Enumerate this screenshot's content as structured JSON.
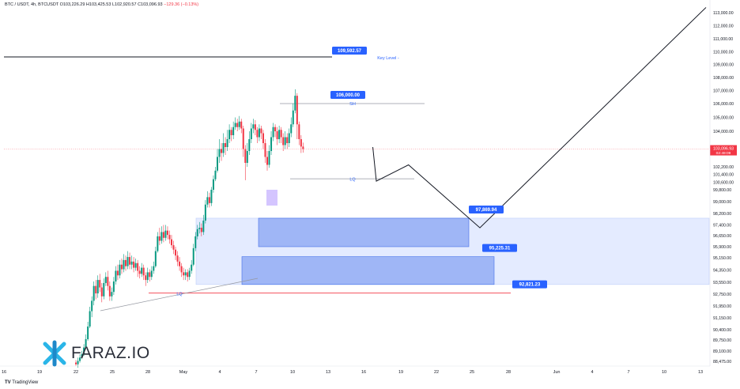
{
  "header": {
    "symbol": "BTC / USDT, 4h, BTCUSDT",
    "ohlc": "O103,226.29  H103,425.53  L102,920.57  C103,096.93",
    "change": "−129.36 (−0.13%)"
  },
  "branding": {
    "tradingview": "TradingView",
    "watermark": "FARAZ.IO"
  },
  "chart_data": {
    "type": "candlestick",
    "symbol": "BTC / USDT",
    "timeframe": "4h",
    "y_ticks": [
      113000,
      112000,
      111000,
      110000,
      109000,
      108000,
      107000,
      106000,
      105000,
      104000,
      103096.93,
      102200,
      101400,
      100600,
      99800,
      99000,
      98200,
      97400,
      96650,
      95900,
      95150,
      94350,
      93550,
      92750,
      91950,
      91150,
      90400,
      89750,
      89100,
      88475
    ],
    "y_tick_labels": [
      "113,000.00",
      "112,000.00",
      "111,000.00",
      "110,000.00",
      "109,000.00",
      "108,000.00",
      "107,000.00",
      "106,000.00",
      "105,000.00",
      "104,000.00",
      "",
      "102,200.00",
      "101,400.00",
      "100,600.00",
      "99,800.00",
      "99,000.00",
      "98,200.00",
      "97,400.00",
      "96,650.00",
      "95,900.00",
      "95,150.00",
      "94,350.00",
      "93,550.00",
      "92,750.00",
      "91,950.00",
      "91,150.00",
      "90,400.00",
      "89,750.00",
      "89,100.00",
      "88,475.00"
    ],
    "x_ticks": [
      "16",
      "19",
      "22",
      "25",
      "28",
      "May",
      "4",
      "7",
      "10",
      "13",
      "16",
      "19",
      "22",
      "25",
      "28",
      "Jun",
      "4",
      "7",
      "10",
      "13"
    ],
    "current_price": {
      "value": 103096.93,
      "label": "103,096.93",
      "countdown": "02:49:09",
      "color": "#f23645"
    },
    "levels": [
      {
        "name": "key_level",
        "value": 109592.57,
        "label": "109,592.57",
        "caption": "Key Level -"
      },
      {
        "name": "sh",
        "value": 106000.0,
        "label": "106,000.00",
        "caption": "SH"
      },
      {
        "name": "lq_upper",
        "value": 100950,
        "caption": "LQ"
      },
      {
        "name": "lq_lower",
        "value": 92821.23,
        "label": "92,821.23",
        "caption": "LQ"
      }
    ],
    "zones": [
      {
        "name": "zone_1",
        "top": 97869.94,
        "bottom": 95900,
        "label": "97,869.94",
        "start": "May 7",
        "end": "May 25"
      },
      {
        "name": "zone_2",
        "top": 95225.31,
        "bottom": 93400,
        "label": "95,225.31",
        "start": "May 5",
        "end": "May 26"
      },
      {
        "name": "zone_wide",
        "top": 97869.94,
        "bottom": 93400,
        "start": "May 1",
        "end": "Jun 13"
      }
    ],
    "projection": [
      {
        "date": "May 16",
        "value": 103200
      },
      {
        "date": "May 17.5",
        "value": 100700
      },
      {
        "date": "May 19",
        "value": 102300
      },
      {
        "date": "May 25",
        "value": 97200
      },
      {
        "date": "Jun 13",
        "value": 113400
      }
    ],
    "candles": [
      [
        88400,
        88300,
        88550,
        88200
      ],
      [
        88300,
        88500,
        88700,
        88100
      ],
      [
        88500,
        88700,
        88900,
        88400
      ],
      [
        88700,
        88900,
        89100,
        88600
      ],
      [
        88900,
        89300,
        89500,
        88800
      ],
      [
        89300,
        89800,
        90100,
        89200
      ],
      [
        89800,
        90600,
        90900,
        89700
      ],
      [
        90600,
        91600,
        91900,
        90500
      ],
      [
        91600,
        92300,
        92600,
        91200
      ],
      [
        92300,
        93300,
        93600,
        92000
      ],
      [
        93300,
        92800,
        93700,
        92400
      ],
      [
        92800,
        93700,
        94000,
        92500
      ],
      [
        93700,
        93200,
        94100,
        92900
      ],
      [
        93200,
        92600,
        93500,
        92200
      ],
      [
        92600,
        93500,
        93800,
        92400
      ],
      [
        93500,
        93900,
        94200,
        93300
      ],
      [
        93900,
        93300,
        94300,
        93000
      ],
      [
        93300,
        92600,
        93600,
        92300
      ],
      [
        92600,
        92900,
        93200,
        92300
      ],
      [
        92900,
        93600,
        93900,
        92700
      ],
      [
        93600,
        94300,
        94600,
        93400
      ],
      [
        94300,
        94000,
        94700,
        93700
      ],
      [
        94000,
        94700,
        95000,
        93800
      ],
      [
        94700,
        94400,
        95100,
        94100
      ],
      [
        94400,
        95000,
        95400,
        94200
      ],
      [
        95000,
        94600,
        95300,
        94300
      ],
      [
        94600,
        95200,
        95600,
        94400
      ],
      [
        95200,
        94700,
        95500,
        94400
      ],
      [
        94700,
        94900,
        95300,
        94400
      ],
      [
        94900,
        94500,
        95200,
        94200
      ],
      [
        94500,
        94800,
        95100,
        94300
      ],
      [
        94800,
        94300,
        95000,
        93900
      ],
      [
        94300,
        94100,
        94600,
        93800
      ],
      [
        94100,
        94500,
        94800,
        93900
      ],
      [
        94500,
        94000,
        94700,
        93700
      ],
      [
        94000,
        93700,
        94200,
        93300
      ],
      [
        93700,
        94200,
        94500,
        93500
      ],
      [
        94200,
        93900,
        94400,
        93600
      ],
      [
        93900,
        94300,
        94600,
        93700
      ],
      [
        94300,
        94600,
        94900,
        94100
      ],
      [
        94600,
        95600,
        95900,
        94500
      ],
      [
        95600,
        96600,
        96900,
        95500
      ],
      [
        96600,
        96300,
        97200,
        96000
      ],
      [
        96300,
        96900,
        97300,
        96100
      ],
      [
        96900,
        96500,
        97400,
        96200
      ],
      [
        96500,
        97000,
        97400,
        96300
      ],
      [
        97000,
        96700,
        97300,
        96400
      ],
      [
        96700,
        96400,
        97000,
        96100
      ],
      [
        96400,
        96000,
        96700,
        95800
      ],
      [
        96000,
        95700,
        96300,
        95400
      ],
      [
        95700,
        95300,
        95900,
        95000
      ],
      [
        95300,
        94900,
        95600,
        94600
      ],
      [
        94900,
        94600,
        95200,
        94300
      ],
      [
        94600,
        94200,
        94800,
        93900
      ],
      [
        94200,
        94000,
        94500,
        93700
      ],
      [
        94000,
        94200,
        94400,
        93700
      ],
      [
        94200,
        93900,
        94400,
        93600
      ],
      [
        93900,
        94300,
        94500,
        93700
      ],
      [
        94300,
        94700,
        95000,
        94100
      ],
      [
        94700,
        95800,
        96100,
        94600
      ],
      [
        95800,
        96600,
        96900,
        95600
      ],
      [
        96600,
        97100,
        97400,
        96400
      ],
      [
        97100,
        97200,
        97600,
        96800
      ],
      [
        97200,
        96900,
        97500,
        96600
      ],
      [
        96900,
        97700,
        98100,
        96700
      ],
      [
        97700,
        98800,
        99100,
        97500
      ],
      [
        98800,
        99300,
        99700,
        98600
      ],
      [
        99300,
        98900,
        99600,
        98600
      ],
      [
        98900,
        99800,
        100100,
        98700
      ],
      [
        99800,
        100900,
        101300,
        99600
      ],
      [
        100900,
        101800,
        102200,
        100700
      ],
      [
        101800,
        102700,
        103100,
        101600
      ],
      [
        102700,
        103100,
        103600,
        102400
      ],
      [
        103100,
        102900,
        103400,
        102500
      ],
      [
        102900,
        103400,
        103900,
        102700
      ],
      [
        103400,
        103200,
        103700,
        102800
      ],
      [
        103200,
        103600,
        104100,
        103000
      ],
      [
        103600,
        104100,
        104500,
        103400
      ],
      [
        104100,
        103800,
        104300,
        103500
      ],
      [
        103800,
        104300,
        104700,
        103600
      ],
      [
        104300,
        104600,
        105000,
        104100
      ],
      [
        104600,
        104300,
        104900,
        104000
      ],
      [
        104300,
        104700,
        105100,
        104100
      ],
      [
        104700,
        104200,
        104900,
        103900
      ],
      [
        104200,
        103100,
        104400,
        102700
      ],
      [
        103100,
        102400,
        103300,
        100800
      ],
      [
        102400,
        103000,
        103400,
        102200
      ],
      [
        103000,
        103600,
        104000,
        102800
      ],
      [
        103600,
        104200,
        104600,
        103400
      ],
      [
        104200,
        104500,
        104900,
        103900
      ],
      [
        104500,
        104100,
        104800,
        103800
      ],
      [
        104100,
        103700,
        104300,
        103400
      ],
      [
        103700,
        104200,
        104500,
        103500
      ],
      [
        104200,
        103900,
        104400,
        103600
      ],
      [
        103900,
        103400,
        104100,
        103100
      ],
      [
        103400,
        102700,
        103600,
        102400
      ],
      [
        102700,
        102300,
        103000,
        101800
      ],
      [
        102300,
        103000,
        103300,
        102100
      ],
      [
        103000,
        103700,
        104000,
        102800
      ],
      [
        103700,
        104300,
        104600,
        103500
      ],
      [
        104300,
        104000,
        104500,
        103700
      ],
      [
        104000,
        103600,
        104300,
        103300
      ],
      [
        103600,
        104100,
        104400,
        103400
      ],
      [
        104100,
        103700,
        104300,
        103400
      ],
      [
        103700,
        103300,
        103900,
        103000
      ],
      [
        103300,
        103700,
        104000,
        103100
      ],
      [
        103700,
        103400,
        103900,
        103100
      ],
      [
        103400,
        103900,
        104200,
        103200
      ],
      [
        103900,
        104500,
        105000,
        103700
      ],
      [
        104500,
        105500,
        106000,
        104300
      ],
      [
        105500,
        106600,
        107100,
        105300
      ],
      [
        106600,
        104500,
        106800,
        103600
      ],
      [
        104500,
        103600,
        104700,
        103300
      ],
      [
        103600,
        103226,
        103800,
        102900
      ],
      [
        103226,
        103097,
        103426,
        102921
      ]
    ]
  }
}
